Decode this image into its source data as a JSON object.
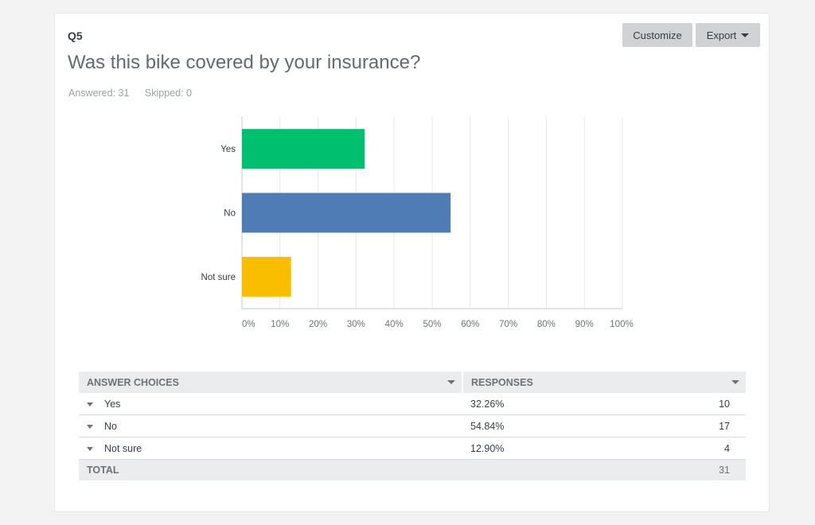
{
  "question": {
    "number": "Q5",
    "title": "Was this bike covered by your insurance?",
    "answered": "Answered: 31",
    "skipped": "Skipped: 0"
  },
  "toolbar": {
    "customize_label": "Customize",
    "export_label": "Export"
  },
  "chart_data": {
    "type": "bar",
    "orientation": "horizontal",
    "categories": [
      "Yes",
      "No",
      "Not sure"
    ],
    "values": [
      32.26,
      54.84,
      12.9
    ],
    "colors": [
      "#00bf6f",
      "#507cb6",
      "#f9be00"
    ],
    "xlim": [
      0,
      100
    ],
    "xticks": [
      "0%",
      "10%",
      "20%",
      "30%",
      "40%",
      "50%",
      "60%",
      "70%",
      "80%",
      "90%",
      "100%"
    ],
    "grid": true
  },
  "table": {
    "headers": [
      "ANSWER CHOICES",
      "RESPONSES"
    ],
    "rows": [
      {
        "choice": "Yes",
        "percent": "32.26%",
        "count": "10"
      },
      {
        "choice": "No",
        "percent": "54.84%",
        "count": "17"
      },
      {
        "choice": "Not sure",
        "percent": "12.90%",
        "count": "4"
      }
    ],
    "total_label": "TOTAL",
    "total_count": "31"
  }
}
